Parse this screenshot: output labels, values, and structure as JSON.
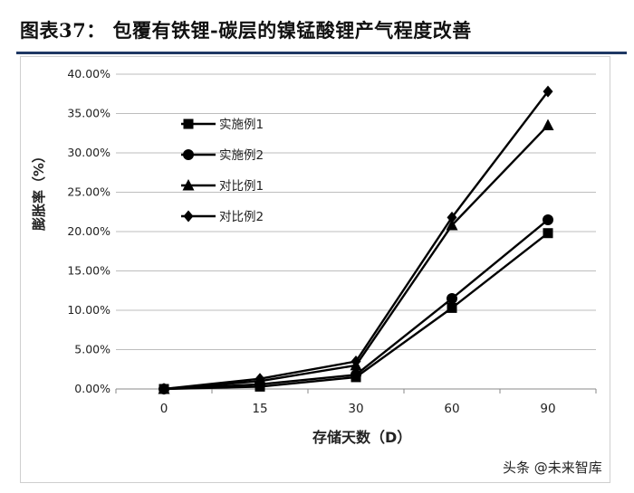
{
  "figure": {
    "title": "图表37：   包覆有铁锂-碳层的镍锰酸锂产气程度改善"
  },
  "watermark": {
    "text": "头条 @未来智库"
  },
  "chart_data": {
    "type": "line",
    "xlabel": "存储天数（D）",
    "ylabel": "膨胀率（%）",
    "categories": [
      "0",
      "15",
      "30",
      "60",
      "90"
    ],
    "x": [
      0,
      15,
      30,
      60,
      90
    ],
    "y_ticks": [
      "0.00%",
      "5.00%",
      "10.00%",
      "15.00%",
      "20.00%",
      "25.00%",
      "30.00%",
      "35.00%",
      "40.00%"
    ],
    "ylim": [
      0,
      40
    ],
    "grid": "horizontal",
    "legend_position": "upper-left",
    "series": [
      {
        "name": "实施例1",
        "marker": "square",
        "values": [
          0.0,
          0.3,
          1.5,
          10.3,
          19.8
        ]
      },
      {
        "name": "实施例2",
        "marker": "circle",
        "values": [
          0.0,
          0.6,
          1.8,
          11.5,
          21.5
        ]
      },
      {
        "name": "对比例1",
        "marker": "triangle",
        "values": [
          0.0,
          1.0,
          3.0,
          20.8,
          33.5
        ]
      },
      {
        "name": "对比例2",
        "marker": "diamond",
        "values": [
          0.0,
          1.3,
          3.5,
          21.8,
          37.8
        ]
      }
    ]
  }
}
